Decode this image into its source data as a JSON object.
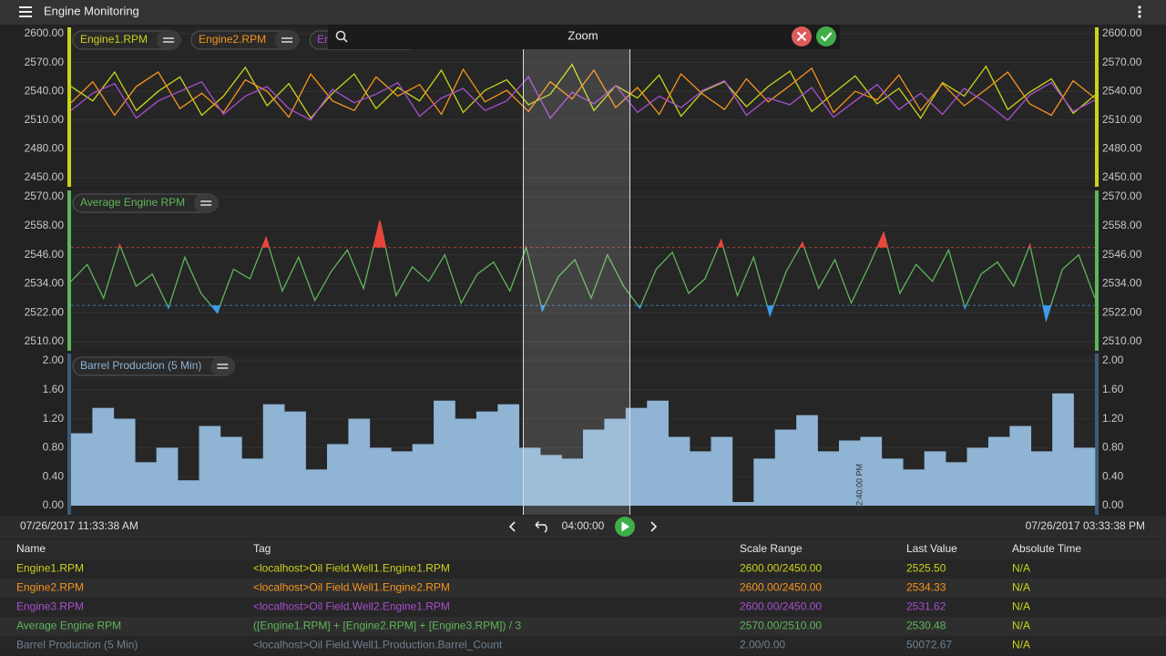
{
  "app_bar": {
    "title": "Engine Monitoring"
  },
  "zoom": {
    "label": "Zoom"
  },
  "chart_data": [
    {
      "type": "line",
      "axis_color": "#c8d41a",
      "ylim": [
        2450,
        2600
      ],
      "yticks": [
        {
          "value": 2600,
          "label": "2600.00"
        },
        {
          "value": 2570,
          "label": "2570.00"
        },
        {
          "value": 2540,
          "label": "2540.00"
        },
        {
          "value": 2510,
          "label": "2510.00"
        },
        {
          "value": 2480,
          "label": "2480.00"
        },
        {
          "value": 2450,
          "label": "2450.00"
        }
      ],
      "series": [
        {
          "name": "Engine1.RPM",
          "color": "#c8d41a",
          "values": [
            2545,
            2530,
            2560,
            2520,
            2540,
            2555,
            2515,
            2535,
            2565,
            2525,
            2548,
            2512,
            2538,
            2558,
            2522,
            2544,
            2530,
            2562,
            2518,
            2541,
            2552,
            2526,
            2537,
            2568,
            2520,
            2546,
            2533,
            2557,
            2514,
            2540,
            2550,
            2524,
            2545,
            2561,
            2519,
            2538,
            2556,
            2527,
            2543,
            2512,
            2549,
            2535,
            2566,
            2521,
            2539,
            2553,
            2517,
            2536
          ]
        },
        {
          "name": "Engine2.RPM",
          "color": "#f7941d",
          "values": [
            2528,
            2550,
            2515,
            2545,
            2560,
            2522,
            2538,
            2518,
            2552,
            2540,
            2513,
            2558,
            2530,
            2520,
            2555,
            2535,
            2547,
            2516,
            2563,
            2529,
            2541,
            2519,
            2550,
            2532,
            2562,
            2523,
            2544,
            2516,
            2558,
            2537,
            2521,
            2553,
            2529,
            2546,
            2564,
            2518,
            2540,
            2531,
            2557,
            2520,
            2548,
            2525,
            2542,
            2560,
            2527,
            2515,
            2551,
            2533
          ]
        },
        {
          "name": "Engine3.RPM",
          "color": "#a64fd0",
          "values": [
            2520,
            2538,
            2548,
            2512,
            2530,
            2540,
            2550,
            2516,
            2535,
            2545,
            2522,
            2510,
            2542,
            2528,
            2537,
            2549,
            2514,
            2533,
            2543,
            2520,
            2530,
            2555,
            2512,
            2539,
            2527,
            2546,
            2518,
            2535,
            2523,
            2541,
            2551,
            2515,
            2533,
            2526,
            2544,
            2513,
            2530,
            2547,
            2521,
            2538,
            2516,
            2543,
            2528,
            2510,
            2536,
            2549,
            2519,
            2531
          ]
        }
      ]
    },
    {
      "type": "line",
      "axis_color": "#5fb55a",
      "ylim": [
        2510,
        2570
      ],
      "yticks": [
        {
          "value": 2570,
          "label": "2570.00"
        },
        {
          "value": 2558,
          "label": "2558.00"
        },
        {
          "value": 2546,
          "label": "2546.00"
        },
        {
          "value": 2534,
          "label": "2534.00"
        },
        {
          "value": 2522,
          "label": "2522.00"
        },
        {
          "value": 2510,
          "label": "2510.00"
        }
      ],
      "high_limit": 2549,
      "high_color": "#e8463c",
      "low_limit": 2525,
      "low_color": "#3d9be9",
      "series": [
        {
          "name": "Average Engine RPM",
          "color": "#5fb55a",
          "values": [
            2535,
            2542,
            2528,
            2550,
            2533,
            2538,
            2524,
            2545,
            2530,
            2522,
            2540,
            2536,
            2553,
            2531,
            2545,
            2527,
            2539,
            2548,
            2532,
            2560,
            2529,
            2541,
            2535,
            2546,
            2526,
            2538,
            2543,
            2531,
            2549,
            2523,
            2537,
            2544,
            2528,
            2546,
            2533,
            2524,
            2540,
            2547,
            2530,
            2536,
            2552,
            2529,
            2545,
            2521,
            2539,
            2551,
            2532,
            2544,
            2526,
            2540,
            2555,
            2530,
            2542,
            2535,
            2548,
            2524,
            2538,
            2543,
            2533,
            2550,
            2519,
            2540,
            2546,
            2528
          ]
        }
      ]
    },
    {
      "type": "bar",
      "axis_color": "#3e5b78",
      "ylim": [
        0,
        2
      ],
      "yticks": [
        {
          "value": 2,
          "label": "2.00"
        },
        {
          "value": 1.6,
          "label": "1.60"
        },
        {
          "value": 1.2,
          "label": "1.20"
        },
        {
          "value": 0.8,
          "label": "0.80"
        },
        {
          "value": 0.4,
          "label": "0.40"
        },
        {
          "value": 0,
          "label": "0.00"
        }
      ],
      "annotations": [
        "02:40:00 PM"
      ],
      "series": [
        {
          "name": "Barrel Production (5 Min)",
          "color": "#8fb4d4",
          "values": [
            1.0,
            1.35,
            1.2,
            0.6,
            0.8,
            0.35,
            1.1,
            0.95,
            0.65,
            1.4,
            1.3,
            0.5,
            0.85,
            1.2,
            0.8,
            0.75,
            0.85,
            1.45,
            1.2,
            1.3,
            1.4,
            0.8,
            0.7,
            0.65,
            1.05,
            1.2,
            1.35,
            1.45,
            0.95,
            0.75,
            0.95,
            0.05,
            0.65,
            1.05,
            1.25,
            0.75,
            0.9,
            0.95,
            0.65,
            0.5,
            0.75,
            0.6,
            0.8,
            0.95,
            1.1,
            0.75,
            1.55,
            0.8
          ]
        }
      ]
    }
  ],
  "time_bar": {
    "start": "07/26/2017 11:33:38 AM",
    "span": "04:00:00",
    "end": "07/26/2017 03:33:38 PM"
  },
  "table": {
    "columns": [
      "Name",
      "Tag",
      "Scale Range",
      "Last Value",
      "Absolute Time"
    ],
    "row_colors": [
      "#c8d41a",
      "#f7941d",
      "#a64fd0",
      "#5fb55a",
      "#6f8090"
    ],
    "rows": [
      [
        "Engine1.RPM",
        "<localhost>Oil Field.Well1.Engine1.RPM",
        "2600.00/2450.00",
        "2525.50",
        "N/A"
      ],
      [
        "Engine2.RPM",
        "<localhost>Oil Field.Well1.Engine2.RPM",
        "2600.00/2450.00",
        "2534.33",
        "N/A"
      ],
      [
        "Engine3.RPM",
        "<localhost>Oil Field.Well2.Engine1.RPM",
        "2600.00/2450.00",
        "2531.62",
        "N/A"
      ],
      [
        "Average Engine RPM",
        "([Engine1.RPM] + [Engine2.RPM] + [Engine3.RPM]) / 3",
        "2570.00/2510.00",
        "2530.48",
        "N/A"
      ],
      [
        "Barrel Production (5 Min)",
        "<localhost>Oil Field.Well1.Production.Barrel_Count",
        "2.00/0.00",
        "50072.67",
        "N/A"
      ]
    ]
  }
}
